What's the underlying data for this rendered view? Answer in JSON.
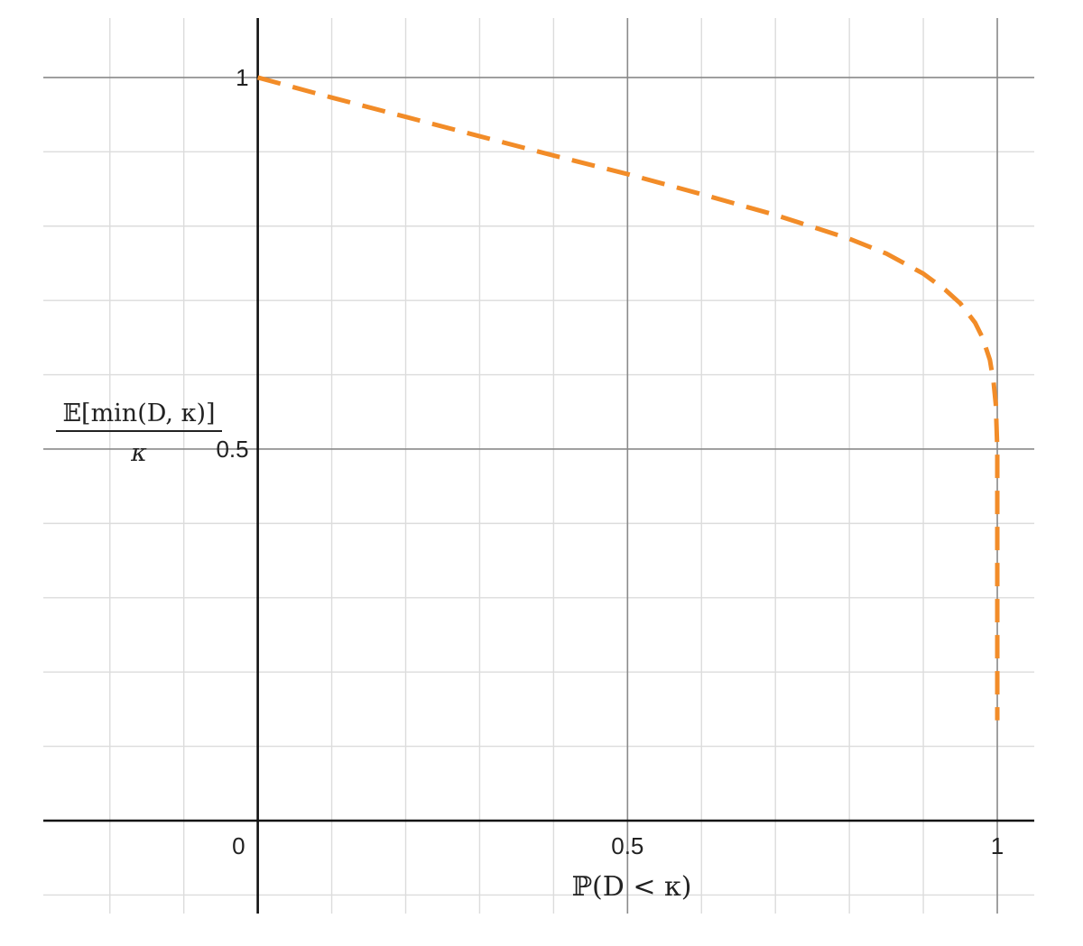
{
  "chart_data": {
    "type": "line",
    "title": "",
    "xlabel": "ℙ(D < κ)",
    "ylabel_numerator": "𝔼[min(D, κ)]",
    "ylabel_denominator": "κ",
    "xlim": [
      -0.29,
      1.05
    ],
    "ylim": [
      -0.125,
      1.08
    ],
    "x_ticks": [
      {
        "value": 0,
        "label": "0"
      },
      {
        "value": 0.5,
        "label": "0.5"
      },
      {
        "value": 1,
        "label": "1"
      }
    ],
    "y_ticks": [
      {
        "value": 0.5,
        "label": "0.5"
      },
      {
        "value": 1,
        "label": "1"
      }
    ],
    "grid": true,
    "minor_grid_step": 0.1,
    "series": [
      {
        "color": "#F28C28",
        "style": "dashed",
        "x": [
          0.0,
          0.1,
          0.2,
          0.3,
          0.4,
          0.5,
          0.6,
          0.7,
          0.8,
          0.85,
          0.9,
          0.93,
          0.95,
          0.97,
          0.98,
          0.99,
          0.995,
          0.998,
          1.0,
          1.0,
          1.0,
          1.0
        ],
        "y": [
          1.0,
          0.973,
          0.947,
          0.921,
          0.895,
          0.87,
          0.843,
          0.815,
          0.783,
          0.763,
          0.736,
          0.714,
          0.696,
          0.67,
          0.65,
          0.62,
          0.59,
          0.56,
          0.5,
          0.3,
          0.2,
          0.135
        ]
      }
    ]
  }
}
